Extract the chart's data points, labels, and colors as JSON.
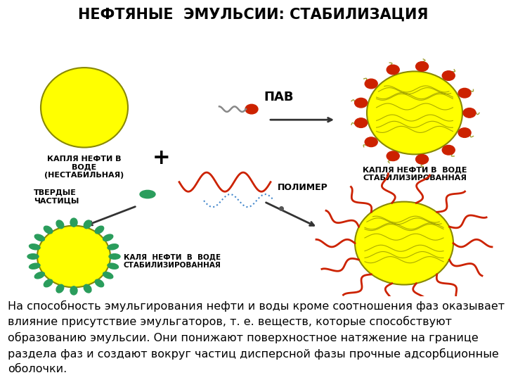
{
  "title": "НЕФТЯНЫЕ  ЭМУЛЬСИИ: СТАБИЛИЗАЦИЯ",
  "title_bg": "#b5cc8e",
  "title_fontsize": 15,
  "body_bg": "#ffffff",
  "label_drop_unstable": "КАПЛЯ НЕФТИ В\nВОДЕ\n(НЕСТАБИЛЬНАЯ)",
  "label_pav": "ПАВ",
  "label_polymer": "ПОЛИМЕР",
  "label_solid": "ТВЕРДЫЕ\nЧАСТИЦЫ",
  "label_drop_stable_top": "КАПЛЯ НЕФТИ В  ВОДЕ\nСТАБИЛИЗИРОВАННАЯ",
  "label_drop_stable_bot": "КАЛЯ  НЕФТИ  В  ВОДЕ\nСТАБИЛИЗИРОВАННАЯ",
  "body_text": "На способность эмульгирования нефти и воды кроме соотношения фаз оказывает\nвлияние присутствие эмульгаторов, т. е. веществ, которые способствуют\nобразованию эмульсии. Они понижают поверхностное натяжение на границе\nраздела фаз и создают вокруг частиц дисперсной фазы прочные адсорбционные\nоболочки.",
  "body_fontsize": 11.5,
  "drop_color_yellow": "#ffff00",
  "drop_outline": "#888800",
  "red_circle_color": "#cc2200",
  "green_particle_color": "#2a9d5c",
  "polymer_color": "#cc2200",
  "arrow_color": "#333333"
}
